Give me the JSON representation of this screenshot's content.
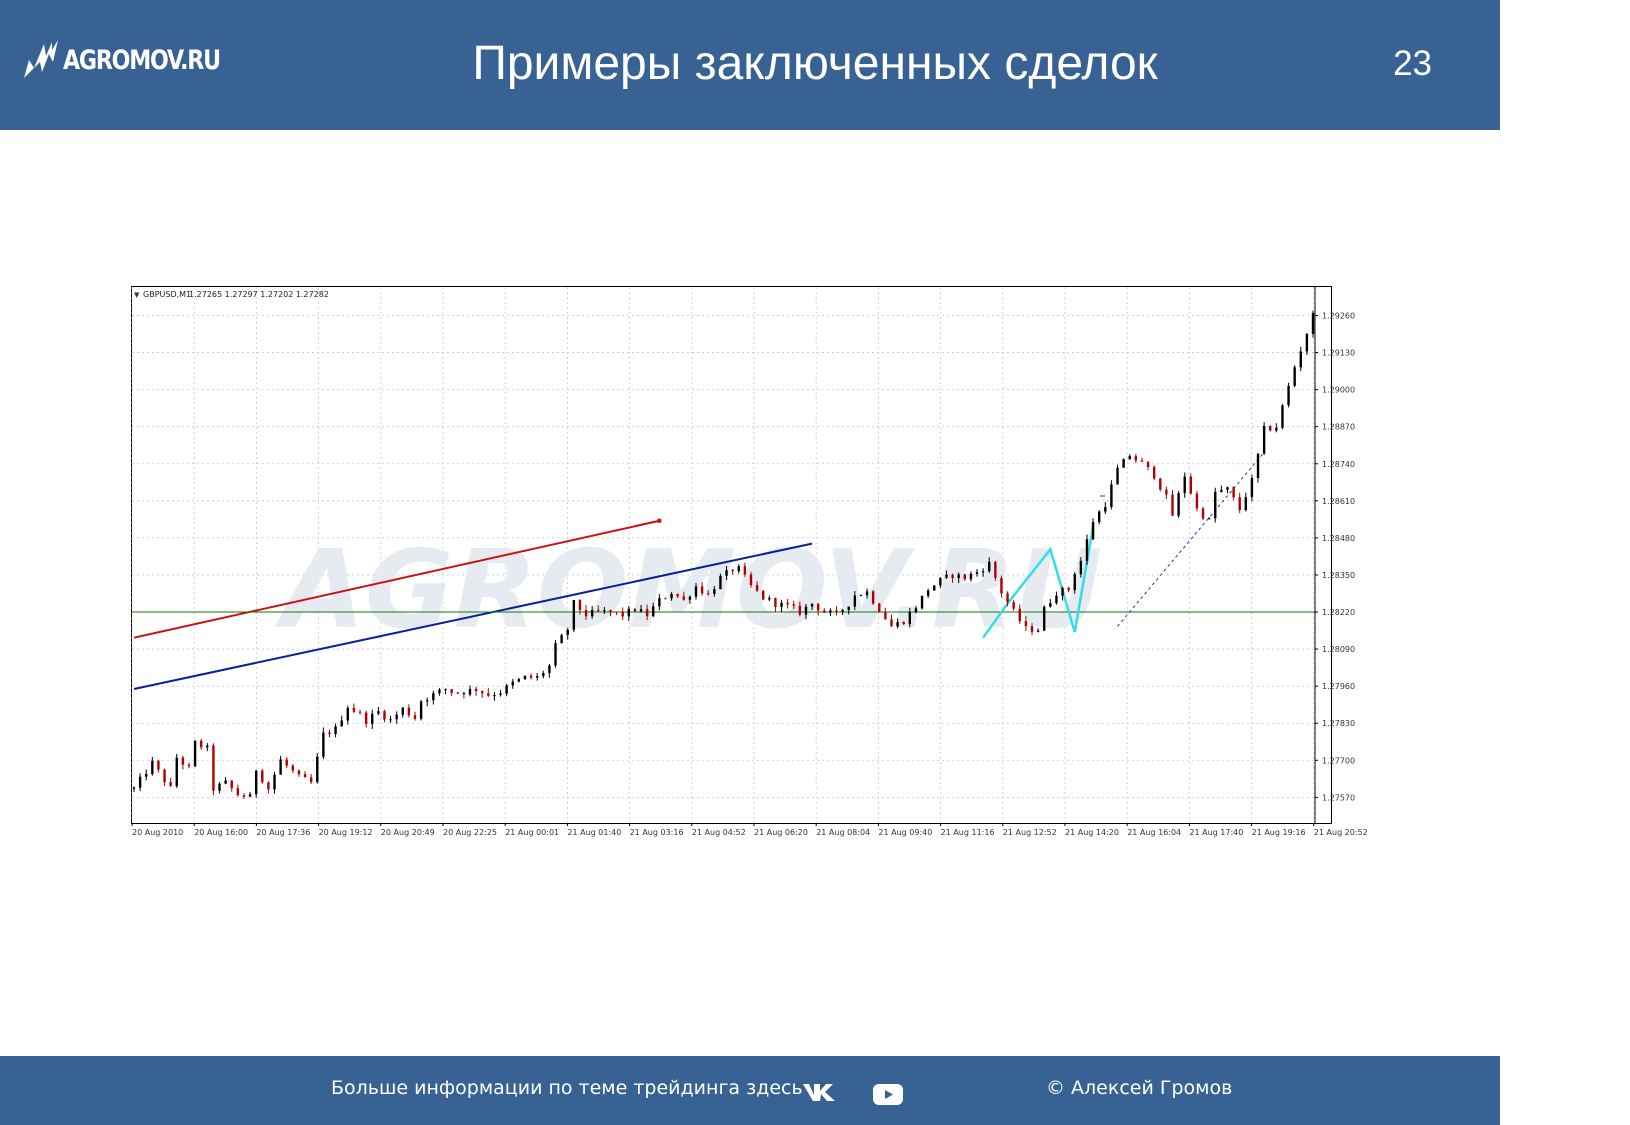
{
  "header": {
    "logo_text": "AGROMOV.RU",
    "title": "Примеры заключенных сделок",
    "page_number": "23",
    "background": "#386293"
  },
  "footer": {
    "text": "Больше информации по теме трейдинга здесь",
    "copyright": "© Алексей Громов",
    "icons": [
      "vk-icon",
      "youtube-icon"
    ]
  },
  "chart_data": {
    "type": "candlestick",
    "symbol_label": "GBPUSD,M1",
    "ohlc_label": "1.27265 1.27297 1.27202 1.27282",
    "watermark": "AGROMOV.RU",
    "grid": true,
    "ylim": [
      1.2748,
      1.2936
    ],
    "y_ticks": [
      "1.29260",
      "1.29130",
      "1.29000",
      "1.28870",
      "1.28740",
      "1.28610",
      "1.28480",
      "1.28350",
      "1.28220",
      "1.28090",
      "1.27960",
      "1.27830",
      "1.27700",
      "1.27570"
    ],
    "x_ticks": [
      "20 Aug 2010",
      "20 Aug 16:00",
      "20 Aug 17:36",
      "20 Aug 19:12",
      "20 Aug 20:49",
      "20 Aug 22:25",
      "21 Aug 00:01",
      "21 Aug 01:40",
      "21 Aug 03:16",
      "21 Aug 04:52",
      "21 Aug 06:20",
      "21 Aug 08:04",
      "21 Aug 09:40",
      "21 Aug 11:16",
      "21 Aug 12:52",
      "21 Aug 14:20",
      "21 Aug 16:04",
      "21 Aug 17:40",
      "21 Aug 19:16",
      "21 Aug 20:52"
    ],
    "price_path": [
      [
        0,
        1.276
      ],
      [
        3,
        1.2769
      ],
      [
        6,
        1.276
      ],
      [
        7,
        1.2771
      ],
      [
        9,
        1.2767
      ],
      [
        10,
        1.2776
      ],
      [
        12,
        1.2774
      ],
      [
        13,
        1.276
      ],
      [
        15,
        1.2762
      ],
      [
        17,
        1.2758
      ],
      [
        19,
        1.2757
      ],
      [
        20,
        1.2767
      ],
      [
        22,
        1.276
      ],
      [
        24,
        1.277
      ],
      [
        27,
        1.2764
      ],
      [
        29,
        1.2762
      ],
      [
        31,
        1.2779
      ],
      [
        33,
        1.2781
      ],
      [
        35,
        1.2789
      ],
      [
        37,
        1.2786
      ],
      [
        38,
        1.2784
      ],
      [
        40,
        1.2787
      ],
      [
        42,
        1.2784
      ],
      [
        44,
        1.2788
      ],
      [
        46,
        1.2785
      ],
      [
        47,
        1.2791
      ],
      [
        49,
        1.2793
      ],
      [
        51,
        1.2795
      ],
      [
        52,
        1.2794
      ],
      [
        54,
        1.2794
      ],
      [
        56,
        1.2795
      ],
      [
        58,
        1.2793
      ],
      [
        60,
        1.2794
      ],
      [
        62,
        1.2797
      ],
      [
        64,
        1.2799
      ],
      [
        66,
        1.2799
      ],
      [
        68,
        1.2803
      ],
      [
        69,
        1.281
      ],
      [
        71,
        1.2816
      ],
      [
        72,
        1.2825
      ],
      [
        74,
        1.2821
      ],
      [
        76,
        1.2822
      ],
      [
        78,
        1.2822
      ],
      [
        80,
        1.2821
      ],
      [
        82,
        1.2823
      ],
      [
        84,
        1.2821
      ],
      [
        86,
        1.2826
      ],
      [
        88,
        1.2829
      ],
      [
        90,
        1.2826
      ],
      [
        92,
        1.2831
      ],
      [
        94,
        1.2828
      ],
      [
        96,
        1.2834
      ],
      [
        98,
        1.2837
      ],
      [
        99,
        1.2837
      ],
      [
        101,
        1.2831
      ],
      [
        103,
        1.2827
      ],
      [
        105,
        1.2825
      ],
      [
        107,
        1.2824
      ],
      [
        109,
        1.2822
      ],
      [
        111,
        1.2825
      ],
      [
        113,
        1.2822
      ],
      [
        115,
        1.2821
      ],
      [
        117,
        1.2825
      ],
      [
        118,
        1.2828
      ],
      [
        120,
        1.2829
      ],
      [
        122,
        1.2823
      ],
      [
        124,
        1.2817
      ],
      [
        126,
        1.2819
      ],
      [
        128,
        1.2824
      ],
      [
        130,
        1.283
      ],
      [
        132,
        1.2833
      ],
      [
        134,
        1.2835
      ],
      [
        136,
        1.2834
      ],
      [
        138,
        1.2836
      ],
      [
        140,
        1.2839
      ],
      [
        142,
        1.2829
      ],
      [
        144,
        1.2822
      ],
      [
        146,
        1.2816
      ],
      [
        148,
        1.2816
      ],
      [
        149,
        1.2823
      ],
      [
        151,
        1.2829
      ],
      [
        153,
        1.283
      ],
      [
        154,
        1.2836
      ],
      [
        155,
        1.284
      ],
      [
        157,
        1.2854
      ],
      [
        159,
        1.286
      ],
      [
        161,
        1.2872
      ],
      [
        163,
        1.2877
      ],
      [
        165,
        1.2874
      ],
      [
        167,
        1.287
      ],
      [
        169,
        1.2862
      ],
      [
        170,
        1.2856
      ],
      [
        172,
        1.287
      ],
      [
        174,
        1.2858
      ],
      [
        176,
        1.2854
      ],
      [
        177,
        1.2864
      ],
      [
        179,
        1.2865
      ],
      [
        181,
        1.2858
      ],
      [
        183,
        1.2868
      ],
      [
        185,
        1.2886
      ],
      [
        187,
        1.2887
      ],
      [
        188,
        1.2894
      ],
      [
        190,
        1.2908
      ],
      [
        191,
        1.2914
      ],
      [
        193,
        1.2926
      ]
    ],
    "annotations": [
      {
        "type": "trendline",
        "color": "#cc1111",
        "from": [
          0,
          1.2813
        ],
        "to": [
          86,
          1.2854
        ]
      },
      {
        "type": "trendline",
        "color": "#0a1fa0",
        "from": [
          0,
          1.2795
        ],
        "to": [
          111,
          1.2846
        ]
      },
      {
        "type": "hline",
        "color": "#0a7a0a",
        "y": 1.2822
      },
      {
        "type": "zigzag",
        "color": "#33dde8",
        "points": [
          [
            139,
            1.2813
          ],
          [
            143,
            1.2825
          ],
          [
            150,
            1.2844
          ],
          [
            154,
            1.2815
          ],
          [
            157,
            1.2852
          ]
        ]
      },
      {
        "type": "dashed",
        "color": "#2233cc",
        "from": [
          161,
          1.2817
        ],
        "to": [
          185,
          1.2878
        ]
      }
    ]
  }
}
